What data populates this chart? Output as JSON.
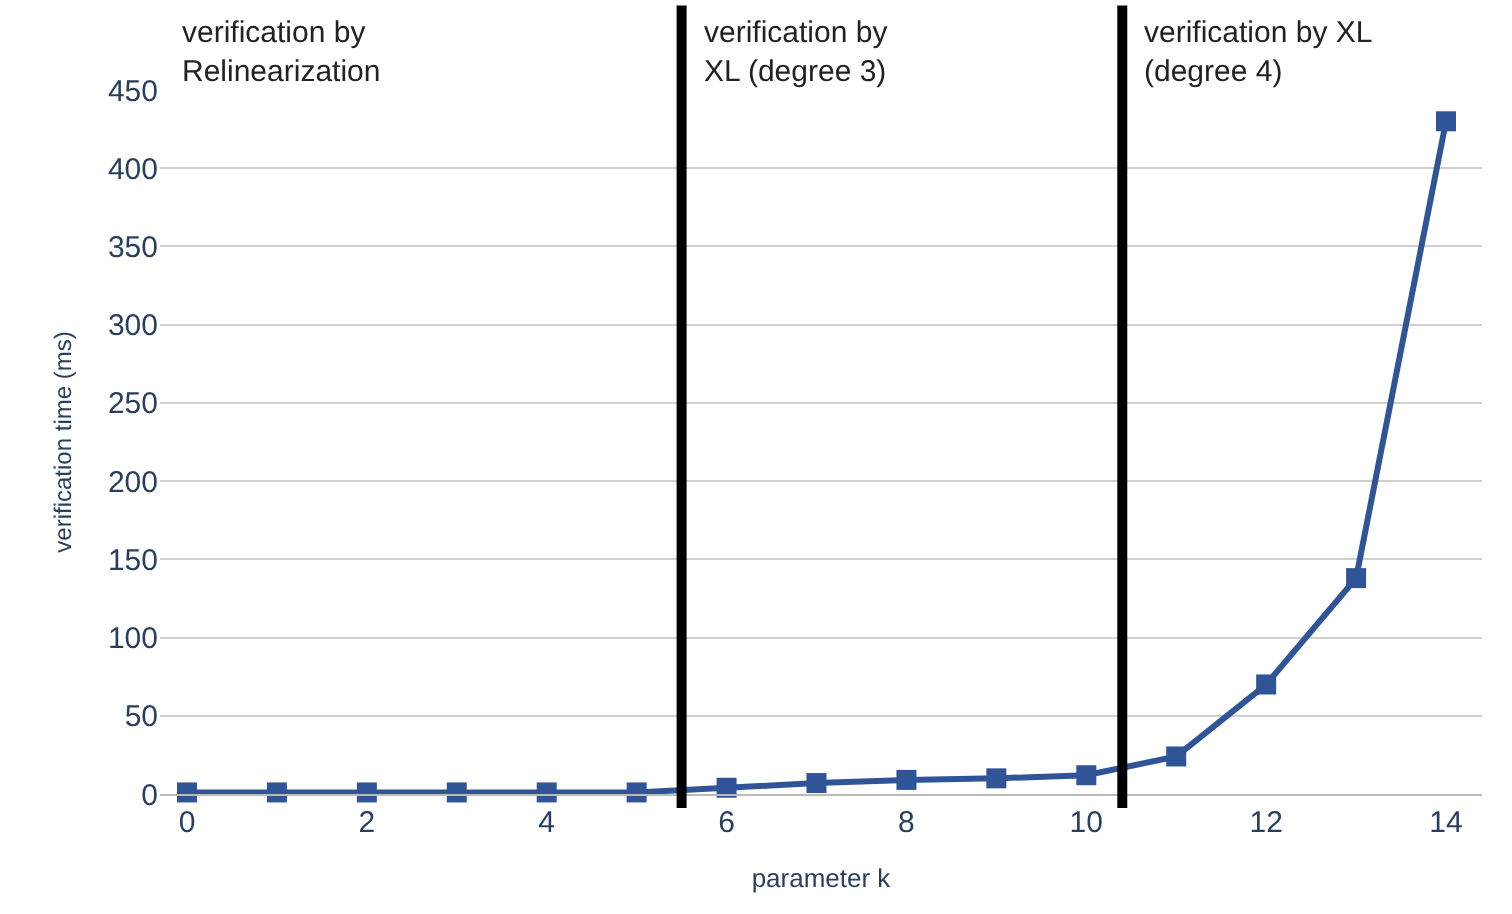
{
  "chart_data": {
    "type": "line",
    "xlabel": "parameter k",
    "ylabel": "verification time (ms)",
    "x": [
      0,
      1,
      2,
      3,
      4,
      5,
      6,
      7,
      8,
      9,
      10,
      11,
      12,
      13,
      14
    ],
    "series": [
      {
        "color": "#2f5597",
        "values": [
          1,
          1,
          1,
          1,
          1,
          1,
          4,
          7,
          9,
          10,
          12,
          24,
          70,
          138,
          430
        ]
      }
    ],
    "xlim": [
      -0.3,
      14.4
    ],
    "xticks": [
      0,
      2,
      4,
      6,
      8,
      10,
      12,
      14
    ],
    "ylim": [
      0,
      450
    ],
    "yticks": [
      0,
      50,
      100,
      150,
      200,
      250,
      300,
      350,
      400,
      450
    ],
    "grid": "y",
    "marker": "square",
    "line_style": "solid",
    "legend": false,
    "ref_lines": [
      {
        "axis": "x",
        "value": 5.5,
        "label": null,
        "color": "#000000"
      },
      {
        "axis": "x",
        "value": 10.4,
        "label": null,
        "color": "#000000"
      }
    ],
    "annotations": [
      "verification by\nRelinearization",
      "verification by\nXL (degree 3)",
      "verification by XL\n(degree 4)"
    ]
  }
}
